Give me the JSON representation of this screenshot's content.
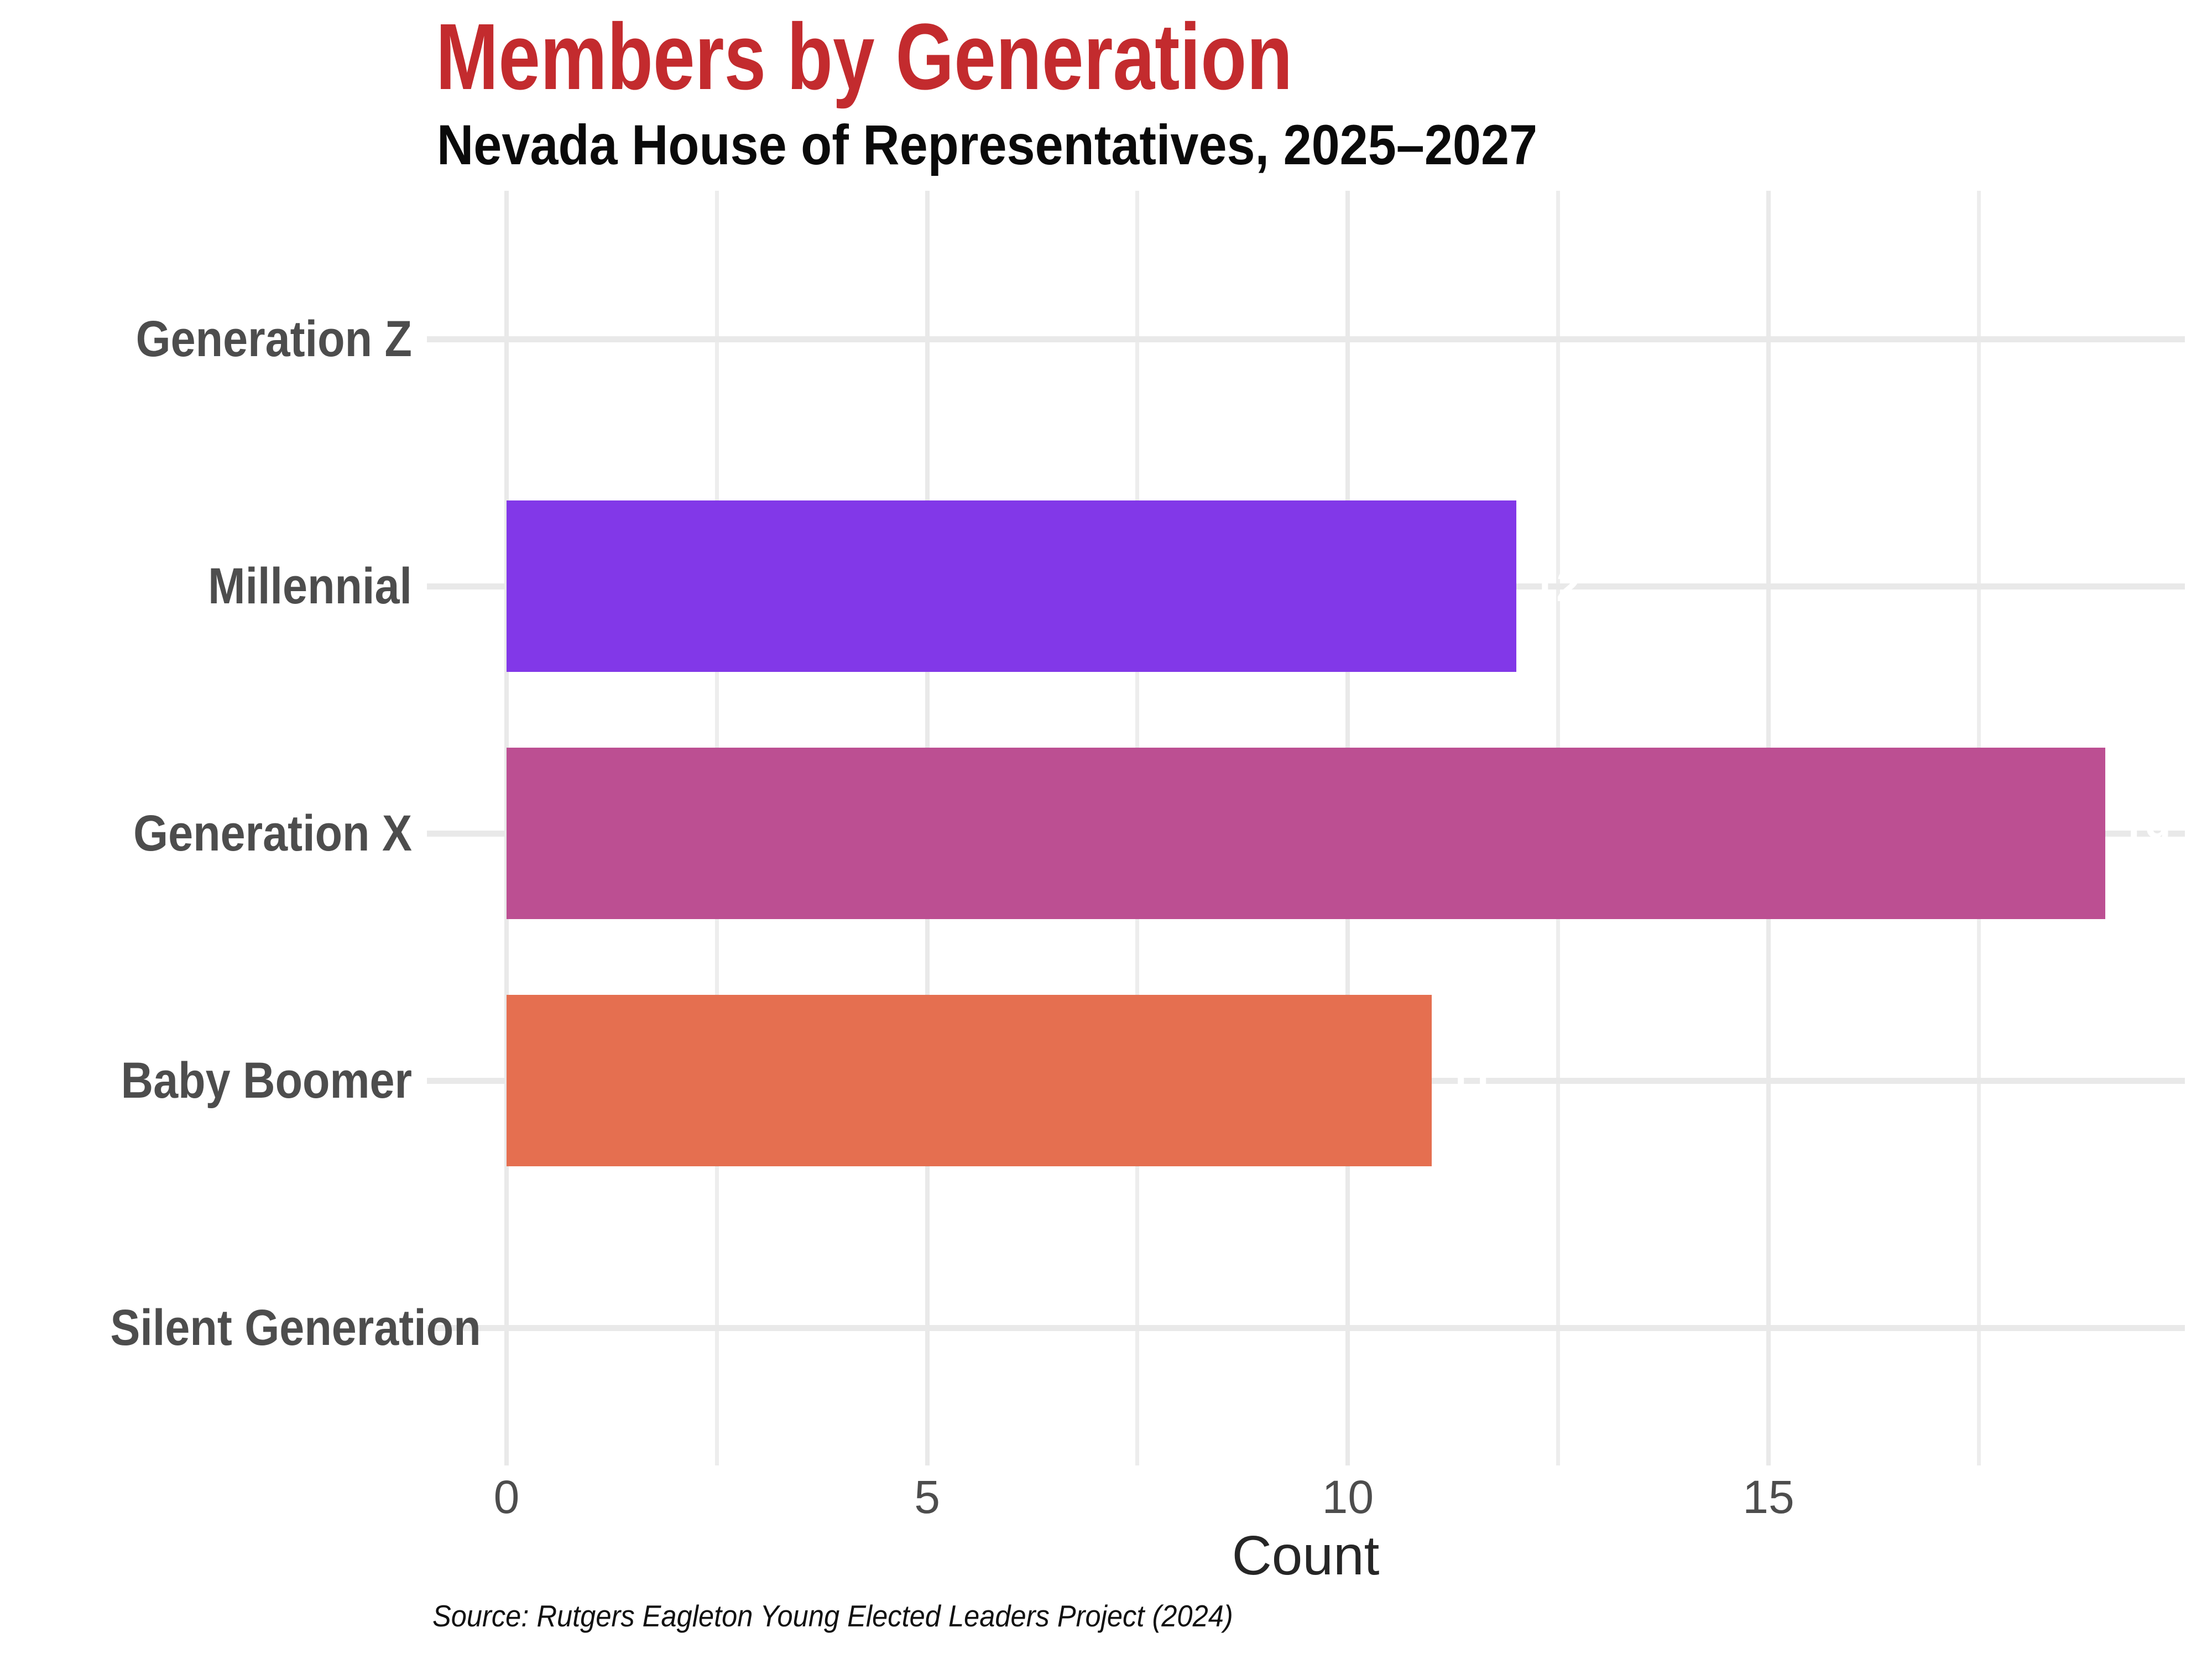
{
  "page": {
    "background_color": "#ffffff"
  },
  "chart_data": {
    "type": "bar",
    "orientation": "horizontal",
    "title": "Members by Generation",
    "subtitle": "Nevada House of Representatives, 2025–2027",
    "xlabel": "Count",
    "source_note": "Source: Rutgers Eagleton Young Elected Leaders Project (2024)",
    "categories": [
      "Generation Z",
      "Millennial",
      "Generation X",
      "Baby Boomer",
      "Silent Generation"
    ],
    "values": [
      0,
      12,
      19,
      11,
      0
    ],
    "bar_colors": [
      "",
      "#8238e8",
      "#bc4f92",
      "#e56f50",
      ""
    ],
    "value_labels": [
      "",
      "12",
      "19",
      "11",
      ""
    ],
    "value_label_color": "#ffffff",
    "x_ticks": [
      0,
      5,
      10,
      15
    ],
    "x_minor_ticks": [
      2.5,
      7.5,
      12.5,
      17.5
    ],
    "xlim": [
      -0.95,
      19.95
    ],
    "grid": true,
    "legend": "none",
    "colors": {
      "title": "#c32b2e",
      "subtitle": "#0a0a0a",
      "axis_text": "#4d4d4d",
      "axis_title": "#262626",
      "gridline": "#e9e9e9"
    }
  }
}
